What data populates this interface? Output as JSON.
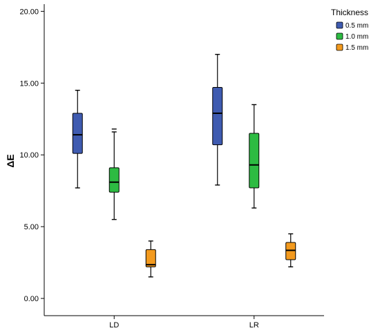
{
  "chart_data": {
    "type": "box",
    "title": "",
    "xlabel": "",
    "ylabel": "ΔE",
    "ylim": [
      -1.2,
      20.5
    ],
    "yticks": [
      "0.00",
      "5.00",
      "10.00",
      "15.00",
      "20.00"
    ],
    "grid": false,
    "legend_position": "right",
    "legend_title": "Thickness",
    "categories": [
      "LD",
      "LR"
    ],
    "series": [
      {
        "name": "0.5 mm",
        "color": "#3f5bb0",
        "boxes": [
          {
            "min": 7.7,
            "q1": 10.1,
            "median": 11.4,
            "q3": 12.9,
            "max": 14.5
          },
          {
            "min": 7.9,
            "q1": 10.7,
            "median": 12.9,
            "q3": 14.7,
            "max": 17.0
          }
        ]
      },
      {
        "name": "1.0 mm",
        "color": "#2dbb42",
        "boxes": [
          {
            "min": 5.5,
            "q1": 7.4,
            "median": 8.1,
            "q3": 9.1,
            "max": 11.6,
            "caps": [
              11.6,
              11.8
            ]
          },
          {
            "min": 6.3,
            "q1": 7.7,
            "median": 9.3,
            "q3": 11.5,
            "max": 13.5
          }
        ]
      },
      {
        "name": "1.5 mm",
        "color": "#f39a1e",
        "boxes": [
          {
            "min": 1.5,
            "q1": 2.2,
            "median": 2.35,
            "q3": 3.4,
            "max": 4.0
          },
          {
            "min": 2.2,
            "q1": 2.7,
            "median": 3.35,
            "q3": 3.9,
            "max": 4.5
          }
        ]
      }
    ]
  }
}
